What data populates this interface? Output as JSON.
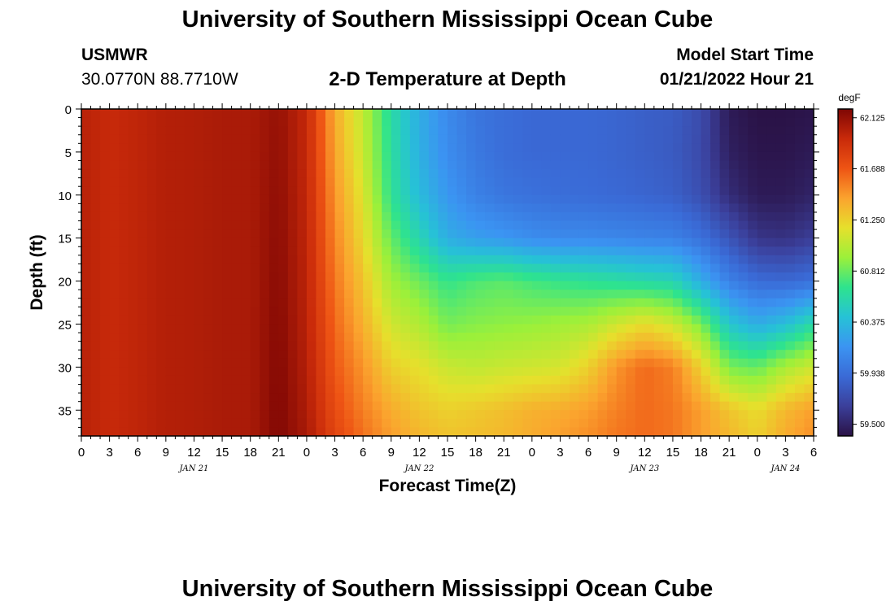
{
  "page": {
    "title": "University of Southern Mississippi Ocean Cube",
    "footer_title": "University of Southern Mississippi Ocean Cube",
    "station": "USMWR",
    "coordinates": "30.0770N  88.7710W",
    "heading": "2-D Temperature at Depth",
    "model_start_label": "Model Start Time",
    "model_start_value": "01/21/2022 Hour 21"
  },
  "chart_data": {
    "type": "heatmap",
    "title": "2-D Temperature at Depth",
    "xlabel": "Forecast Time(Z)",
    "ylabel": "Depth (ft)",
    "x_range_hours": [
      0,
      78
    ],
    "x_tick_hours": [
      0,
      3,
      6,
      9,
      12,
      15,
      18,
      21,
      24,
      27,
      30,
      33,
      36,
      39,
      42,
      45,
      48,
      51,
      54,
      57,
      60,
      63,
      66,
      69,
      72,
      75,
      78
    ],
    "x_tick_labels": [
      "0",
      "3",
      "6",
      "9",
      "12",
      "15",
      "18",
      "21",
      "0",
      "3",
      "6",
      "9",
      "12",
      "15",
      "18",
      "21",
      "0",
      "3",
      "6",
      "9",
      "12",
      "15",
      "18",
      "21",
      "0",
      "3",
      "6"
    ],
    "date_labels": [
      {
        "hour": 12,
        "text": "JAN 21"
      },
      {
        "hour": 36,
        "text": "JAN 22"
      },
      {
        "hour": 60,
        "text": "JAN 23"
      },
      {
        "hour": 75,
        "text": "JAN 24"
      }
    ],
    "y_range_ft": [
      0,
      38
    ],
    "y_ticks": [
      0,
      5,
      10,
      15,
      20,
      25,
      30,
      35
    ],
    "colorbar": {
      "unit": "degF",
      "min": 59.4,
      "max": 62.2,
      "ticks": [
        "62.125",
        "61.688",
        "61.250",
        "60.812",
        "60.375",
        "59.938",
        "59.500"
      ],
      "stops": [
        "#2a1246",
        "#3b3f9a",
        "#3a6ad6",
        "#3b94f2",
        "#26c2d6",
        "#2ee38e",
        "#9bf03a",
        "#e6e02c",
        "#fba32e",
        "#ee5414",
        "#c92a0a",
        "#7e0604"
      ]
    },
    "temperature_grid_degF": {
      "time_hours": [
        0,
        3,
        6,
        9,
        12,
        15,
        18,
        21,
        24,
        27,
        30,
        33,
        36,
        39,
        42,
        45,
        48,
        51,
        54,
        57,
        60,
        63,
        66,
        69,
        72,
        75,
        78
      ],
      "depth_ft": [
        0,
        5,
        10,
        15,
        20,
        25,
        30,
        35,
        38
      ],
      "values": [
        [
          62.0,
          62.0,
          62.0,
          62.0,
          62.0,
          62.0,
          62.0,
          62.0,
          62.0
        ],
        [
          61.95,
          61.95,
          61.95,
          61.95,
          61.95,
          61.95,
          61.95,
          61.95,
          61.95
        ],
        [
          61.98,
          61.98,
          61.98,
          61.98,
          61.98,
          61.98,
          61.98,
          61.98,
          61.98
        ],
        [
          62.02,
          62.02,
          62.02,
          62.02,
          62.02,
          62.02,
          62.02,
          62.02,
          62.02
        ],
        [
          62.03,
          62.03,
          62.03,
          62.03,
          62.03,
          62.03,
          62.03,
          62.03,
          62.03
        ],
        [
          62.05,
          62.05,
          62.05,
          62.05,
          62.05,
          62.05,
          62.05,
          62.05,
          62.05
        ],
        [
          62.05,
          62.05,
          62.05,
          62.05,
          62.05,
          62.05,
          62.05,
          62.05,
          62.05
        ],
        [
          62.12,
          62.13,
          62.14,
          62.15,
          62.16,
          62.17,
          62.18,
          62.19,
          62.19
        ],
        [
          61.96,
          61.96,
          61.97,
          61.98,
          61.99,
          62.0,
          62.02,
          62.04,
          62.06
        ],
        [
          61.4,
          61.43,
          61.48,
          61.53,
          61.58,
          61.63,
          61.68,
          61.74,
          61.78
        ],
        [
          61.05,
          61.08,
          61.15,
          61.21,
          61.3,
          61.38,
          61.48,
          61.55,
          61.6
        ],
        [
          60.6,
          60.62,
          60.65,
          60.8,
          60.95,
          61.1,
          61.25,
          61.4,
          61.45
        ],
        [
          60.3,
          60.32,
          60.38,
          60.55,
          60.82,
          61.0,
          61.18,
          61.3,
          61.36
        ],
        [
          60.1,
          60.12,
          60.18,
          60.3,
          60.68,
          60.84,
          61.08,
          61.25,
          61.3
        ],
        [
          59.98,
          60.0,
          60.05,
          60.22,
          60.75,
          60.88,
          61.05,
          61.28,
          61.32
        ],
        [
          59.93,
          59.93,
          59.98,
          60.18,
          60.78,
          60.9,
          61.08,
          61.32,
          61.35
        ],
        [
          59.9,
          59.9,
          59.95,
          60.12,
          60.72,
          60.92,
          61.1,
          61.38,
          61.4
        ],
        [
          59.9,
          59.9,
          59.93,
          60.1,
          60.68,
          60.95,
          61.12,
          61.4,
          61.45
        ],
        [
          59.9,
          59.9,
          59.92,
          60.1,
          60.65,
          60.98,
          61.25,
          61.45,
          61.5
        ],
        [
          59.88,
          59.88,
          59.9,
          60.08,
          60.62,
          61.1,
          61.48,
          61.55,
          61.58
        ],
        [
          59.85,
          59.85,
          59.88,
          60.06,
          60.58,
          61.2,
          61.62,
          61.62,
          61.62
        ],
        [
          59.83,
          59.82,
          59.85,
          60.05,
          60.55,
          61.1,
          61.55,
          61.58,
          61.58
        ],
        [
          59.73,
          59.72,
          59.75,
          59.95,
          60.3,
          60.85,
          61.25,
          61.45,
          61.45
        ],
        [
          59.45,
          59.48,
          59.55,
          59.78,
          60.05,
          60.45,
          60.85,
          61.3,
          61.35
        ],
        [
          59.4,
          59.42,
          59.45,
          59.6,
          59.92,
          60.3,
          60.8,
          61.2,
          61.25
        ],
        [
          59.4,
          59.42,
          59.45,
          59.58,
          59.9,
          60.4,
          60.98,
          61.35,
          61.4
        ],
        [
          59.42,
          59.45,
          59.5,
          59.65,
          59.95,
          60.6,
          61.1,
          61.45,
          61.5
        ]
      ]
    }
  }
}
